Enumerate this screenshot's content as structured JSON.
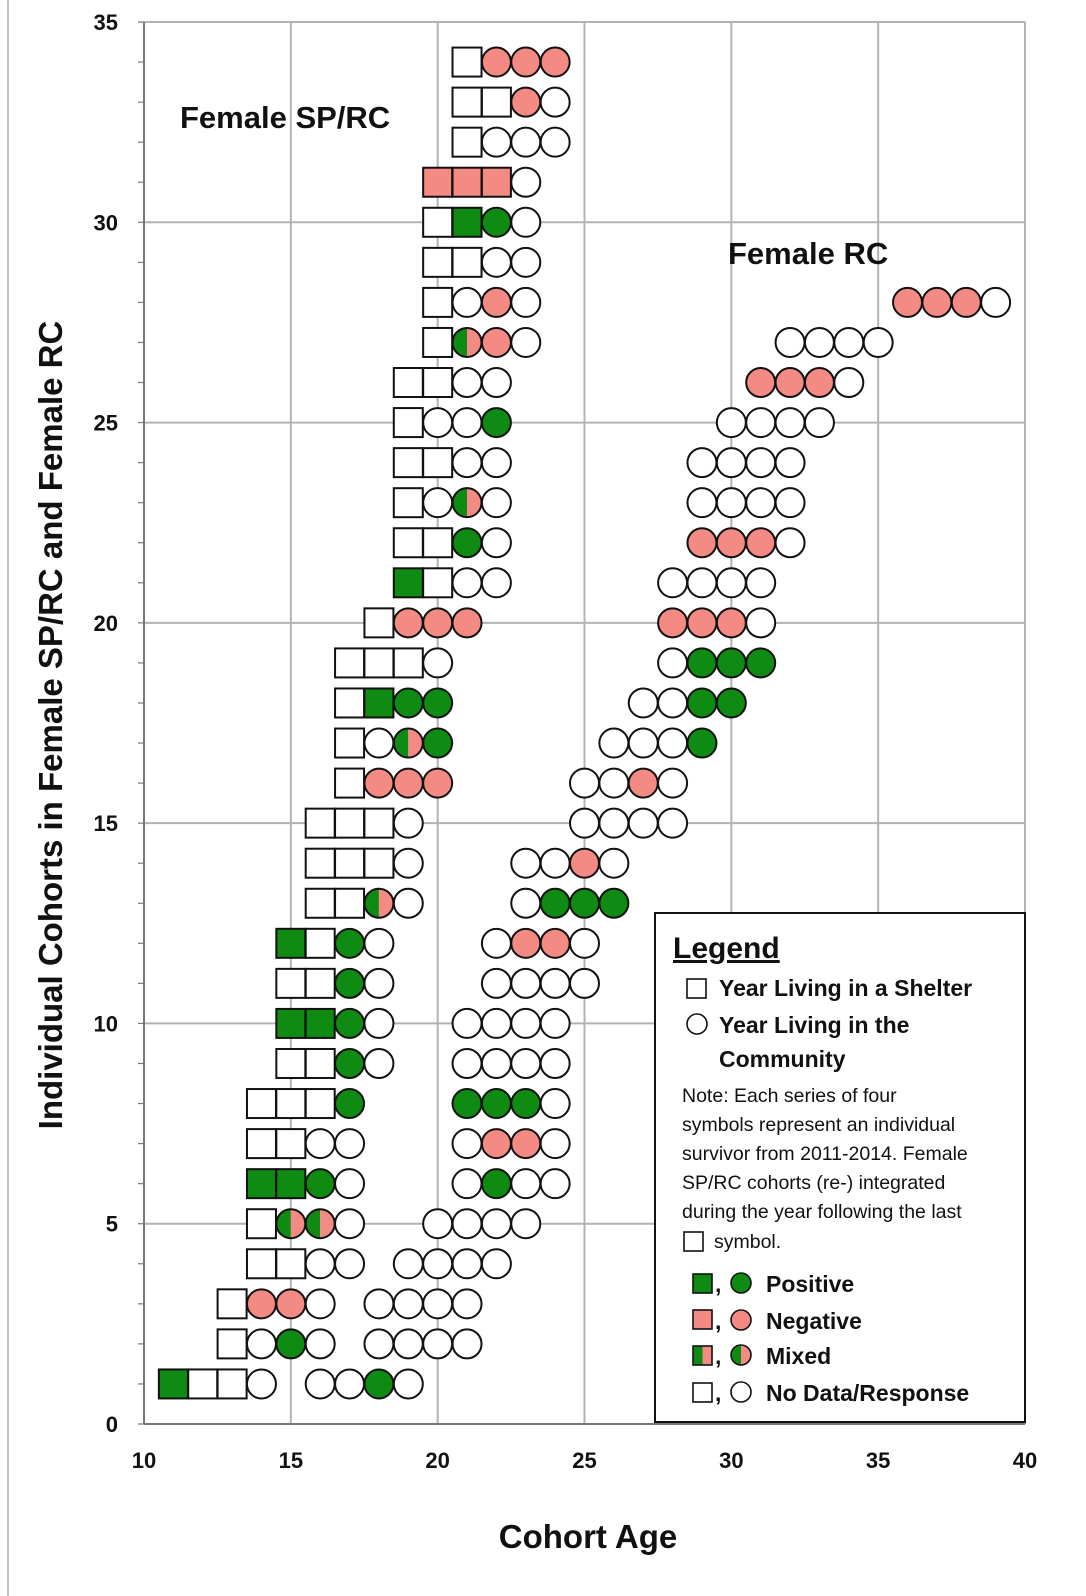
{
  "chart_data": {
    "type": "scatter",
    "xlabel": "Cohort Age",
    "ylabel": "Individual Cohorts in Female SP/RC and Female RC",
    "xlim": [
      10,
      40
    ],
    "ylim": [
      0,
      35
    ],
    "x_ticks": [
      10,
      15,
      20,
      25,
      30,
      35,
      40
    ],
    "y_ticks": [
      0,
      5,
      10,
      15,
      20,
      25,
      30,
      35
    ],
    "grid": "on",
    "annotations": [
      "Female SP/RC",
      "Female RC"
    ],
    "colors": {
      "positive": "#0f8a12",
      "negative": "#f48a84",
      "no_data": "#ffffff",
      "outline": "#111111",
      "grid": "#b3b3b3"
    },
    "legend": {
      "title": "Legend",
      "placement": "bottom-right",
      "shelter_label": "Year Living in a Shelter",
      "community_label_1": "Year Living in the",
      "community_label_2": "Community",
      "note_lines": [
        "Note:  Each series of  four",
        "symbols represent an individual",
        "survivor from 2011-2014.  Female",
        "SP/RC cohorts (re-) integrated",
        "during the year following the last"
      ],
      "note_last": "symbol.",
      "positive_label": "Positive",
      "negative_label": "Negative",
      "mixed_label": "Mixed",
      "nodata_label": "No Data/Response",
      "comma": ","
    },
    "symbol_encoding": "each row string lists four years; S = shelter (square), C = community (circle); W = no data/response, G = positive, R = negative, M = mixed",
    "series": [
      {
        "name": "Female SP/RC",
        "cohorts": [
          {
            "y": 1,
            "start_age": 11,
            "years": [
              "SG",
              "SW",
              "SW",
              "CW"
            ]
          },
          {
            "y": 2,
            "start_age": 13,
            "years": [
              "SW",
              "CW",
              "CG",
              "CW"
            ]
          },
          {
            "y": 3,
            "start_age": 13,
            "years": [
              "SW",
              "CR",
              "CR",
              "CW"
            ]
          },
          {
            "y": 4,
            "start_age": 14,
            "years": [
              "SW",
              "SW",
              "CW",
              "CW"
            ]
          },
          {
            "y": 5,
            "start_age": 14,
            "years": [
              "SW",
              "CM",
              "CM",
              "CW"
            ]
          },
          {
            "y": 6,
            "start_age": 14,
            "years": [
              "SG",
              "SG",
              "CG",
              "CW"
            ]
          },
          {
            "y": 7,
            "start_age": 14,
            "years": [
              "SW",
              "SW",
              "CW",
              "CW"
            ]
          },
          {
            "y": 8,
            "start_age": 14,
            "years": [
              "SW",
              "SW",
              "SW",
              "CG"
            ]
          },
          {
            "y": 9,
            "start_age": 15,
            "years": [
              "SW",
              "SW",
              "CG",
              "CW"
            ]
          },
          {
            "y": 10,
            "start_age": 15,
            "years": [
              "SG",
              "SG",
              "CG",
              "CW"
            ]
          },
          {
            "y": 11,
            "start_age": 15,
            "years": [
              "SW",
              "SW",
              "CG",
              "CW"
            ]
          },
          {
            "y": 12,
            "start_age": 15,
            "years": [
              "SG",
              "SW",
              "CG",
              "CW"
            ]
          },
          {
            "y": 13,
            "start_age": 16,
            "years": [
              "SW",
              "SW",
              "CM",
              "CW"
            ]
          },
          {
            "y": 14,
            "start_age": 16,
            "years": [
              "SW",
              "SW",
              "SW",
              "CW"
            ]
          },
          {
            "y": 15,
            "start_age": 16,
            "years": [
              "SW",
              "SW",
              "SW",
              "CW"
            ]
          },
          {
            "y": 16,
            "start_age": 17,
            "years": [
              "SW",
              "CR",
              "CR",
              "CR"
            ]
          },
          {
            "y": 17,
            "start_age": 17,
            "years": [
              "SW",
              "CW",
              "CM",
              "CG"
            ]
          },
          {
            "y": 18,
            "start_age": 17,
            "years": [
              "SW",
              "SG",
              "CG",
              "CG"
            ]
          },
          {
            "y": 19,
            "start_age": 17,
            "years": [
              "SW",
              "SW",
              "SW",
              "CW"
            ]
          },
          {
            "y": 20,
            "start_age": 18,
            "years": [
              "SW",
              "CR",
              "CR",
              "CR"
            ]
          },
          {
            "y": 21,
            "start_age": 19,
            "years": [
              "SG",
              "SW",
              "CW",
              "CW"
            ]
          },
          {
            "y": 22,
            "start_age": 19,
            "years": [
              "SW",
              "SW",
              "CG",
              "CW"
            ]
          },
          {
            "y": 23,
            "start_age": 19,
            "years": [
              "SW",
              "CW",
              "CM",
              "CW"
            ]
          },
          {
            "y": 24,
            "start_age": 19,
            "years": [
              "SW",
              "SW",
              "CW",
              "CW"
            ]
          },
          {
            "y": 25,
            "start_age": 19,
            "years": [
              "SW",
              "CW",
              "CW",
              "CG"
            ]
          },
          {
            "y": 26,
            "start_age": 19,
            "years": [
              "SW",
              "SW",
              "CW",
              "CW"
            ]
          },
          {
            "y": 27,
            "start_age": 20,
            "years": [
              "SW",
              "CM",
              "CR",
              "CW"
            ]
          },
          {
            "y": 28,
            "start_age": 20,
            "years": [
              "SW",
              "CW",
              "CR",
              "CW"
            ]
          },
          {
            "y": 29,
            "start_age": 20,
            "years": [
              "SW",
              "SW",
              "CW",
              "CW"
            ]
          },
          {
            "y": 30,
            "start_age": 20,
            "years": [
              "SW",
              "SG",
              "CG",
              "CW"
            ]
          },
          {
            "y": 31,
            "start_age": 20,
            "years": [
              "SR",
              "SR",
              "SR",
              "CW"
            ]
          },
          {
            "y": 32,
            "start_age": 21,
            "years": [
              "SW",
              "CW",
              "CW",
              "CW"
            ]
          },
          {
            "y": 33,
            "start_age": 21,
            "years": [
              "SW",
              "SW",
              "CR",
              "CW"
            ]
          },
          {
            "y": 34,
            "start_age": 21,
            "years": [
              "SW",
              "CR",
              "CR",
              "CR"
            ]
          }
        ]
      },
      {
        "name": "Female RC",
        "cohorts": [
          {
            "y": 1,
            "start_age": 16,
            "years": [
              "CW",
              "CW",
              "CG",
              "CW"
            ]
          },
          {
            "y": 2,
            "start_age": 18,
            "years": [
              "CW",
              "CW",
              "CW",
              "CW"
            ]
          },
          {
            "y": 3,
            "start_age": 18,
            "years": [
              "CW",
              "CW",
              "CW",
              "CW"
            ]
          },
          {
            "y": 4,
            "start_age": 19,
            "years": [
              "CW",
              "CW",
              "CW",
              "CW"
            ]
          },
          {
            "y": 5,
            "start_age": 20,
            "years": [
              "CW",
              "CW",
              "CW",
              "CW"
            ]
          },
          {
            "y": 6,
            "start_age": 21,
            "years": [
              "CW",
              "CG",
              "CW",
              "CW"
            ]
          },
          {
            "y": 7,
            "start_age": 21,
            "years": [
              "CW",
              "CR",
              "CR",
              "CW"
            ]
          },
          {
            "y": 8,
            "start_age": 21,
            "years": [
              "CG",
              "CG",
              "CG",
              "CW"
            ]
          },
          {
            "y": 9,
            "start_age": 21,
            "years": [
              "CW",
              "CW",
              "CW",
              "CW"
            ]
          },
          {
            "y": 10,
            "start_age": 21,
            "years": [
              "CW",
              "CW",
              "CW",
              "CW"
            ]
          },
          {
            "y": 11,
            "start_age": 22,
            "years": [
              "CW",
              "CW",
              "CW",
              "CW"
            ]
          },
          {
            "y": 12,
            "start_age": 22,
            "years": [
              "CW",
              "CR",
              "CR",
              "CW"
            ]
          },
          {
            "y": 13,
            "start_age": 23,
            "years": [
              "CW",
              "CG",
              "CG",
              "CG"
            ]
          },
          {
            "y": 14,
            "start_age": 23,
            "years": [
              "CW",
              "CW",
              "CR",
              "CW"
            ]
          },
          {
            "y": 15,
            "start_age": 25,
            "years": [
              "CW",
              "CW",
              "CW",
              "CW"
            ]
          },
          {
            "y": 16,
            "start_age": 25,
            "years": [
              "CW",
              "CW",
              "CR",
              "CW"
            ]
          },
          {
            "y": 17,
            "start_age": 26,
            "years": [
              "CW",
              "CW",
              "CW",
              "CG"
            ]
          },
          {
            "y": 18,
            "start_age": 27,
            "years": [
              "CW",
              "CW",
              "CG",
              "CG"
            ]
          },
          {
            "y": 19,
            "start_age": 28,
            "years": [
              "CW",
              "CG",
              "CG",
              "CG"
            ]
          },
          {
            "y": 20,
            "start_age": 28,
            "years": [
              "CR",
              "CR",
              "CR",
              "CW"
            ]
          },
          {
            "y": 21,
            "start_age": 28,
            "years": [
              "CW",
              "CW",
              "CW",
              "CW"
            ]
          },
          {
            "y": 22,
            "start_age": 29,
            "years": [
              "CR",
              "CR",
              "CR",
              "CW"
            ]
          },
          {
            "y": 23,
            "start_age": 29,
            "years": [
              "CW",
              "CW",
              "CW",
              "CW"
            ]
          },
          {
            "y": 24,
            "start_age": 29,
            "years": [
              "CW",
              "CW",
              "CW",
              "CW"
            ]
          },
          {
            "y": 25,
            "start_age": 30,
            "years": [
              "CW",
              "CW",
              "CW",
              "CW"
            ]
          },
          {
            "y": 26,
            "start_age": 31,
            "years": [
              "CR",
              "CR",
              "CR",
              "CW"
            ]
          },
          {
            "y": 27,
            "start_age": 32,
            "years": [
              "CW",
              "CW",
              "CW",
              "CW"
            ]
          },
          {
            "y": 28,
            "start_age": 36,
            "years": [
              "CR",
              "CR",
              "CR",
              "CW"
            ]
          }
        ]
      }
    ]
  }
}
